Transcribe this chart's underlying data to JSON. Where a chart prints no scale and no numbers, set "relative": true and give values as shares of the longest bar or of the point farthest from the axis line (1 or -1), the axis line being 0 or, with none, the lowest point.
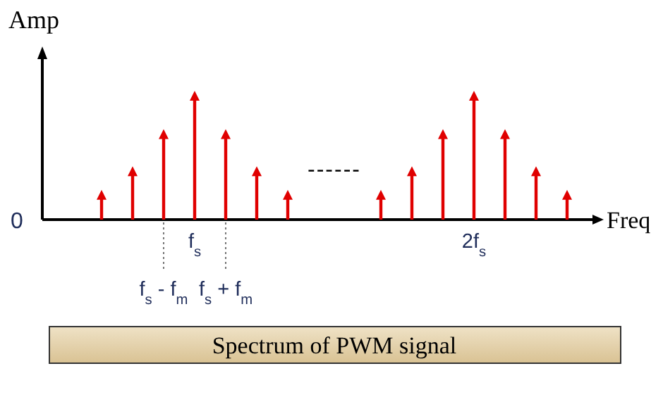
{
  "chart_data": {
    "type": "lollipop",
    "title": "Spectrum of PWM signal",
    "xlabel": "Freq",
    "ylabel": "Amp",
    "relative": true,
    "marker": "triangle",
    "color": "#e00000",
    "categories": [
      null,
      null,
      null,
      "f$_{s}$",
      null,
      null,
      null,
      null,
      null,
      null,
      null,
      null,
      "2f$_{s}$",
      null,
      null,
      null
    ],
    "values": [
      0.2,
      0.39,
      0.69,
      1,
      0.69,
      0.39,
      0.2,
      null,
      null,
      0.2,
      0.39,
      0.69,
      1,
      0.69,
      0.39,
      0.2
    ],
    "annotations": [
      "0",
      "------",
      "f$_{s}$ - f$_{m}$",
      "f$_{s}$ + f$_{m}$"
    ]
  }
}
